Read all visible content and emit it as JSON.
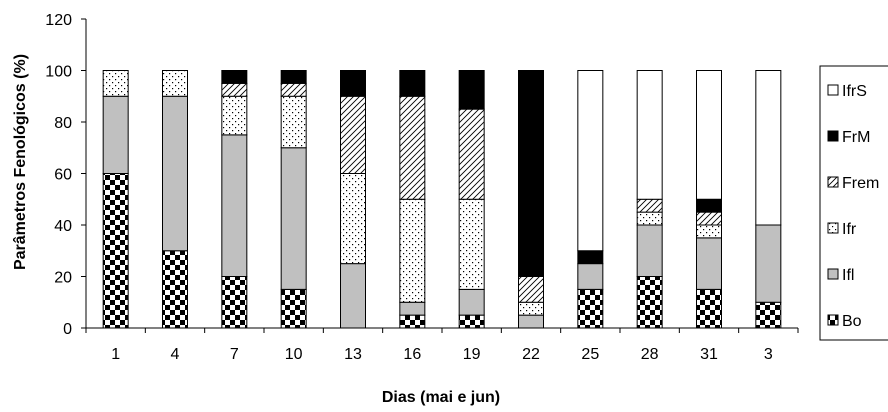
{
  "chart_data": {
    "type": "bar",
    "stacked": true,
    "ylabel": "Parâmetros Fenológicos (%)",
    "xlabel": "Dias (mai e jun)",
    "ylim": [
      0,
      120
    ],
    "yticks": [
      0,
      20,
      40,
      60,
      80,
      100,
      120
    ],
    "grid": false,
    "legend_position": "right",
    "categories": [
      "1",
      "4",
      "7",
      "10",
      "13",
      "16",
      "19",
      "22",
      "25",
      "28",
      "31",
      "3"
    ],
    "series": [
      {
        "name": "Bo",
        "pattern": "checker",
        "values": [
          60,
          30,
          20,
          15,
          0,
          5,
          5,
          0,
          15,
          20,
          15,
          10
        ]
      },
      {
        "name": "Ifl",
        "pattern": "gray",
        "values": [
          30,
          60,
          55,
          55,
          25,
          5,
          10,
          5,
          10,
          20,
          20,
          30
        ]
      },
      {
        "name": "Ifr",
        "pattern": "dots",
        "values": [
          10,
          10,
          15,
          20,
          35,
          40,
          35,
          5,
          0,
          5,
          5,
          0
        ]
      },
      {
        "name": "Frem",
        "pattern": "diagonal",
        "values": [
          0,
          0,
          5,
          5,
          30,
          40,
          35,
          10,
          0,
          5,
          5,
          0
        ]
      },
      {
        "name": "FrM",
        "pattern": "black",
        "values": [
          0,
          0,
          5,
          5,
          10,
          10,
          15,
          80,
          5,
          0,
          5,
          0
        ]
      },
      {
        "name": "IfrS",
        "pattern": "white",
        "values": [
          0,
          0,
          0,
          0,
          0,
          0,
          0,
          0,
          70,
          50,
          50,
          60
        ]
      }
    ],
    "legend_order": [
      "IfrS",
      "FrM",
      "Frem",
      "Ifr",
      "Ifl",
      "Bo"
    ]
  }
}
